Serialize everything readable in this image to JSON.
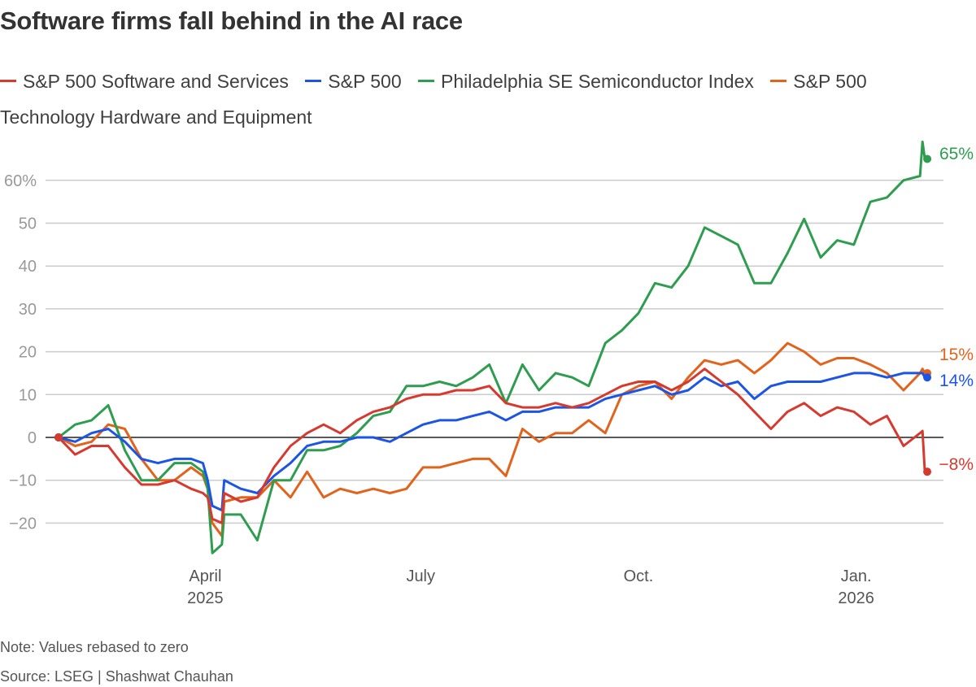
{
  "chart_data": {
    "type": "line",
    "title": "Software firms fall behind in the AI race",
    "xlabel": "",
    "ylabel": "",
    "ylim": [
      -28,
      70
    ],
    "yticks": [
      -20,
      -10,
      0,
      10,
      20,
      30,
      40,
      50,
      60
    ],
    "ytick_labels": [
      "−20",
      "−10",
      "0",
      "10",
      "20",
      "30",
      "40",
      "50",
      "60%"
    ],
    "xticks": [
      {
        "date": "2025-04-01",
        "label": "April",
        "sublabel": "2025"
      },
      {
        "date": "2025-07-01",
        "label": "July",
        "sublabel": ""
      },
      {
        "date": "2025-10-01",
        "label": "Oct.",
        "sublabel": ""
      },
      {
        "date": "2026-01-01",
        "label": "Jan.",
        "sublabel": "2026"
      }
    ],
    "grid": true,
    "legend_position": "top",
    "x": [
      "2025-01-29",
      "2025-02-05",
      "2025-02-12",
      "2025-02-19",
      "2025-02-26",
      "2025-03-05",
      "2025-03-12",
      "2025-03-19",
      "2025-03-26",
      "2025-03-31",
      "2025-04-02",
      "2025-04-04",
      "2025-04-08",
      "2025-04-09",
      "2025-04-16",
      "2025-04-23",
      "2025-04-30",
      "2025-05-07",
      "2025-05-14",
      "2025-05-21",
      "2025-05-28",
      "2025-06-04",
      "2025-06-11",
      "2025-06-18",
      "2025-06-25",
      "2025-07-02",
      "2025-07-09",
      "2025-07-16",
      "2025-07-23",
      "2025-07-30",
      "2025-08-06",
      "2025-08-13",
      "2025-08-20",
      "2025-08-27",
      "2025-09-03",
      "2025-09-10",
      "2025-09-17",
      "2025-09-24",
      "2025-10-01",
      "2025-10-08",
      "2025-10-15",
      "2025-10-22",
      "2025-10-29",
      "2025-11-05",
      "2025-11-12",
      "2025-11-19",
      "2025-11-26",
      "2025-12-03",
      "2025-12-10",
      "2025-12-17",
      "2025-12-24",
      "2025-12-31",
      "2026-01-07",
      "2026-01-14",
      "2026-01-21",
      "2026-01-28",
      "2026-01-29",
      "2026-01-30"
    ],
    "series": [
      {
        "name": "S&P 500 Software and Services",
        "color": "#d63a2f",
        "end_label": "−8%",
        "values": [
          0,
          -4,
          -2,
          -2,
          -7,
          -11,
          -11,
          -10,
          -12,
          -13,
          -14,
          -19,
          -20,
          -13,
          -15,
          -14,
          -7,
          -2,
          1,
          3,
          1,
          4,
          6,
          7,
          9,
          10,
          10,
          11,
          11,
          12,
          8,
          7,
          7,
          8,
          7,
          8,
          10,
          12,
          13,
          13,
          11,
          13,
          16,
          13,
          10,
          6,
          2,
          6,
          8,
          5,
          7,
          6,
          3,
          5,
          -2,
          1,
          1.5,
          -8
        ]
      },
      {
        "name": "S&P 500",
        "color": "#1c55e6",
        "end_label": "14%",
        "values": [
          0,
          -1,
          1,
          2,
          -1,
          -5,
          -6,
          -5,
          -5,
          -6,
          -10,
          -16,
          -17,
          -10,
          -12,
          -13,
          -9,
          -6,
          -2,
          -1,
          -1,
          0,
          0,
          -1,
          1,
          3,
          4,
          4,
          5,
          6,
          4,
          6,
          6,
          7,
          7,
          7,
          9,
          10,
          11,
          12,
          10,
          11,
          14,
          12,
          13,
          9,
          12,
          13,
          13,
          13,
          14,
          15,
          15,
          14,
          15,
          15,
          15,
          14
        ]
      },
      {
        "name": "Philadelphia SE Semiconductor Index",
        "color": "#2e9d50",
        "end_label": "65%",
        "values": [
          0,
          3,
          4,
          7.5,
          -3,
          -10,
          -10,
          -6,
          -6,
          -8,
          -12,
          -27,
          -25,
          -18,
          -18,
          -24,
          -10,
          -10,
          -3,
          -3,
          -2,
          1,
          5,
          6,
          12,
          12,
          13,
          12,
          14,
          17,
          8,
          17,
          11,
          15,
          14,
          12,
          22,
          25,
          29,
          36,
          35,
          40,
          49,
          47,
          45,
          36,
          36,
          43,
          51,
          42,
          46,
          45,
          55,
          56,
          60,
          61,
          69,
          65
        ]
      },
      {
        "name": "S&P 500 Technology Hardware and Equipment",
        "color": "#e2631c",
        "end_label": "15%",
        "values": [
          0,
          -2,
          -1,
          3,
          2,
          -5,
          -10,
          -10,
          -7,
          -9,
          -12,
          -20,
          -23,
          -15,
          -14,
          -14,
          -10,
          -14,
          -8,
          -14,
          -12,
          -13,
          -12,
          -13,
          -12,
          -7,
          -7,
          -6,
          -5,
          -5,
          -9,
          2,
          -1,
          1,
          1,
          4,
          1,
          10,
          12,
          13,
          9,
          14,
          18,
          17,
          18,
          15,
          18,
          22,
          20,
          17,
          18.5,
          18.5,
          17,
          15,
          11,
          15,
          16,
          15
        ]
      }
    ]
  },
  "legend": [
    {
      "label": "S&P 500 Software and Services",
      "color": "#d63a2f"
    },
    {
      "label": "S&P 500",
      "color": "#1c55e6"
    },
    {
      "label": "Philadelphia SE Semiconductor Index",
      "color": "#2e9d50"
    },
    {
      "label": "S&P 500 Technology Hardware and Equipment",
      "color": "#e2631c"
    }
  ],
  "footer": {
    "note": "Note: Values rebased to zero",
    "source": "Source: LSEG | Shashwat Chauhan"
  }
}
